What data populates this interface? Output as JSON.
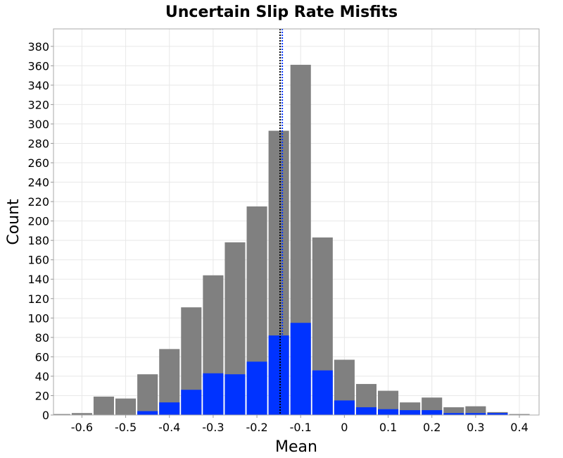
{
  "chart_data": {
    "type": "bar",
    "title": "Uncertain Slip Rate Misfits",
    "xlabel": "Mean",
    "ylabel": "Count",
    "xlim": [
      -0.665,
      0.445
    ],
    "ylim": [
      0,
      398
    ],
    "bin_width": 0.05,
    "x_ticks": [
      -0.6,
      -0.5,
      -0.4,
      -0.3,
      -0.2,
      -0.1,
      0,
      0.1,
      0.2,
      0.3,
      0.4
    ],
    "x_tick_labels": [
      "-0.6",
      "-0.5",
      "-0.4",
      "-0.3",
      "-0.2",
      "-0.1",
      "0",
      "0.1",
      "0.2",
      "0.3",
      "0.4"
    ],
    "y_ticks": [
      0,
      20,
      40,
      60,
      80,
      100,
      120,
      140,
      160,
      180,
      200,
      220,
      240,
      260,
      280,
      300,
      320,
      340,
      360,
      380
    ],
    "y_tick_labels": [
      "0",
      "20",
      "40",
      "60",
      "80",
      "100",
      "120",
      "140",
      "160",
      "180",
      "200",
      "220",
      "240",
      "260",
      "280",
      "300",
      "320",
      "340",
      "360",
      "380"
    ],
    "grid": true,
    "bin_centers": [
      -0.65,
      -0.6,
      -0.55,
      -0.5,
      -0.45,
      -0.4,
      -0.35,
      -0.3,
      -0.25,
      -0.2,
      -0.15,
      -0.1,
      -0.05,
      0.0,
      0.05,
      0.1,
      0.15,
      0.2,
      0.25,
      0.3,
      0.35,
      0.4,
      0.45
    ],
    "series": [
      {
        "color": "#808080",
        "values": [
          1,
          2,
          19,
          17,
          42,
          68,
          111,
          144,
          178,
          215,
          293,
          361,
          183,
          57,
          32,
          25,
          13,
          18,
          8,
          9,
          3,
          1,
          0
        ]
      },
      {
        "color": "#0033ff",
        "values": [
          0,
          0,
          0,
          0,
          4,
          13,
          26,
          43,
          42,
          55,
          82,
          95,
          46,
          15,
          8,
          6,
          5,
          5,
          2,
          2,
          2,
          0,
          0
        ]
      }
    ],
    "vertical_lines": [
      {
        "x": -0.147,
        "color": "#000000",
        "style": "dotted"
      },
      {
        "x": -0.142,
        "color": "#0033ff",
        "style": "dotted"
      }
    ]
  }
}
